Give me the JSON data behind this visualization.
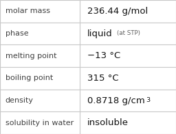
{
  "rows": [
    {
      "label": "molar mass",
      "value": "236.44 g/mol",
      "extra": null,
      "superscript": false
    },
    {
      "label": "phase",
      "value": "liquid",
      "extra": "(at STP)",
      "superscript": false
    },
    {
      "label": "melting point",
      "value": "−13 °C",
      "extra": null,
      "superscript": false
    },
    {
      "label": "boiling point",
      "value": "315 °C",
      "extra": null,
      "superscript": false
    },
    {
      "label": "density",
      "value": "0.8718 g/cm",
      "extra": "3",
      "superscript": true
    },
    {
      "label": "solubility in water",
      "value": "insoluble",
      "extra": null,
      "superscript": false
    }
  ],
  "bg_color": "#ffffff",
  "border_color": "#c8c8c8",
  "label_color": "#404040",
  "value_color": "#111111",
  "extra_color": "#606060",
  "font_size_label": 8.0,
  "font_size_value": 9.5,
  "font_size_extra": 6.2,
  "col_split": 0.455,
  "fig_width": 2.56,
  "fig_height": 1.96
}
